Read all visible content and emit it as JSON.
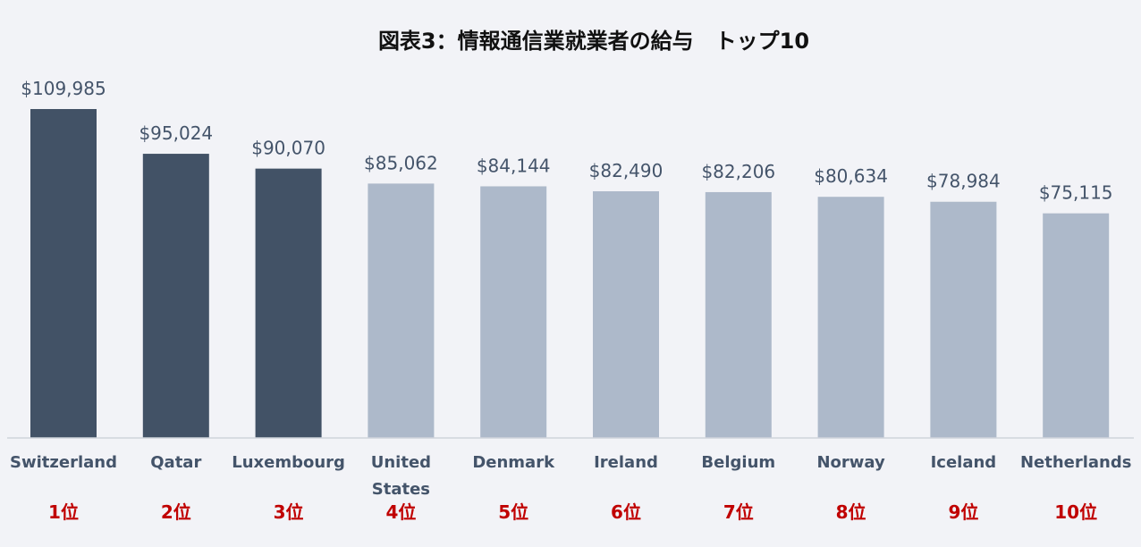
{
  "chart_data": {
    "type": "bar",
    "title": "図表3：情報通信業就業者の給与　トップ10",
    "categories": [
      "Switzerland",
      "Qatar",
      "Luxembourg",
      "United States",
      "Denmark",
      "Ireland",
      "Belgium",
      "Norway",
      "Iceland",
      "Netherlands"
    ],
    "category_lines": [
      [
        "Switzerland"
      ],
      [
        "Qatar"
      ],
      [
        "Luxembourg"
      ],
      [
        "United",
        "States"
      ],
      [
        "Denmark"
      ],
      [
        "Ireland"
      ],
      [
        "Belgium"
      ],
      [
        "Norway"
      ],
      [
        "Iceland"
      ],
      [
        "Netherlands"
      ]
    ],
    "values": [
      109985,
      95024,
      90070,
      85062,
      84144,
      82490,
      82206,
      80634,
      78984,
      75115
    ],
    "value_labels": [
      "$109,985",
      "$95,024",
      "$90,070",
      "$85,062",
      "$84,144",
      "$82,490",
      "$82,206",
      "$80,634",
      "$78,984",
      "$75,115"
    ],
    "ranks": [
      "1位",
      "2位",
      "3位",
      "4位",
      "5位",
      "6位",
      "7位",
      "8位",
      "9位",
      "10位"
    ],
    "highlight_count": 3,
    "xlabel": "",
    "ylabel": "",
    "ylim": [
      0,
      110000
    ],
    "grid": false,
    "colors": {
      "highlight": "#425266",
      "normal": "#adb9ca",
      "axis": "#d0d4dc",
      "rank": "#c00000",
      "text": "#44546a",
      "background": "#f2f3f7"
    }
  }
}
